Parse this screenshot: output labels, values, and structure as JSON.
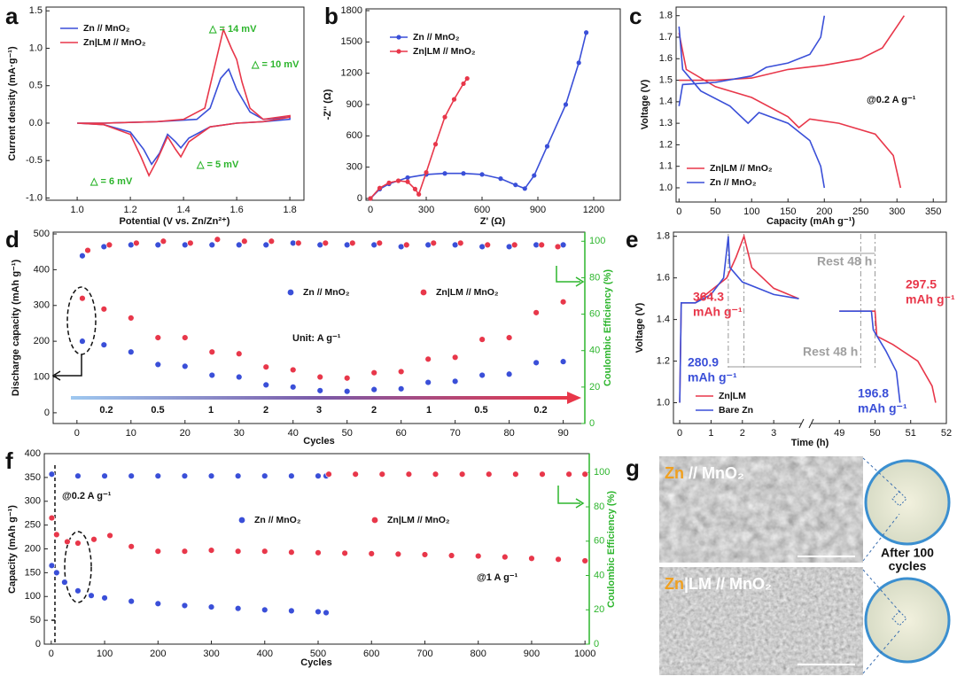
{
  "chart_data": [
    {
      "panel_label": "a",
      "type": "line",
      "xlabel": "Potential (V vs. Zn/Zn²⁺)",
      "ylabel": "Current density (mA·g⁻¹)",
      "xlim": [
        0.883,
        1.853
      ],
      "ylim": [
        -1.03,
        1.55
      ],
      "xticks": [
        {
          "value": 1,
          "label": "1.0"
        },
        1.2,
        1.4,
        1.6,
        1.8
      ],
      "yticks": [
        {
          "value": -1,
          "label": "-1.0"
        },
        -0.5,
        {
          "value": 0,
          "label": "0.0"
        },
        0.5,
        {
          "value": 1,
          "label": "1.0"
        },
        1.5
      ],
      "series": [
        {
          "name": "Zn // MnO₂",
          "color": "#3a4fd8",
          "x": [
            1.0,
            1.1,
            1.2,
            1.25,
            1.28,
            1.31,
            1.34,
            1.37,
            1.39,
            1.42,
            1.5,
            1.6,
            1.7,
            1.8,
            1.8,
            1.7,
            1.65,
            1.6,
            1.57,
            1.54,
            1.5,
            1.45,
            1.3,
            1.1,
            1.0
          ],
          "values": [
            0,
            -0.02,
            -0.12,
            -0.35,
            -0.55,
            -0.4,
            -0.15,
            -0.25,
            -0.33,
            -0.2,
            -0.05,
            0,
            0.02,
            0.05,
            0.08,
            0.05,
            0.15,
            0.45,
            0.72,
            0.6,
            0.2,
            0.05,
            0.02,
            0,
            0
          ]
        },
        {
          "name": "Zn|LM // MnO₂",
          "color": "#e8374a",
          "x": [
            1.0,
            1.1,
            1.2,
            1.24,
            1.27,
            1.3,
            1.34,
            1.37,
            1.39,
            1.42,
            1.5,
            1.6,
            1.7,
            1.8,
            1.8,
            1.7,
            1.65,
            1.62,
            1.6,
            1.58,
            1.55,
            1.52,
            1.48,
            1.4,
            1.3,
            1.1,
            1.0
          ],
          "values": [
            0,
            -0.02,
            -0.15,
            -0.45,
            -0.7,
            -0.5,
            -0.18,
            -0.35,
            -0.45,
            -0.25,
            -0.05,
            0,
            0.02,
            0.08,
            0.1,
            0.05,
            0.2,
            0.55,
            0.85,
            1.0,
            1.25,
            0.8,
            0.2,
            0.05,
            0.02,
            0,
            0
          ]
        }
      ],
      "annotations": [
        {
          "text": "△ = 14 mV",
          "color": "#2db52d"
        },
        {
          "text": "△ = 10 mV",
          "color": "#2db52d"
        },
        {
          "text": "△ = 5 mV",
          "color": "#2db52d"
        },
        {
          "text": "△ = 6 mV",
          "color": "#2db52d"
        }
      ]
    },
    {
      "panel_label": "b",
      "type": "line",
      "markers": true,
      "xlabel": "Z' (Ω)",
      "ylabel": "-Z'' (Ω)",
      "xlim": [
        -24,
        1343
      ],
      "ylim": [
        -17,
        1817
      ],
      "xticks": [
        0,
        300,
        600,
        900,
        1200
      ],
      "yticks": [
        0,
        300,
        600,
        900,
        1200,
        1500,
        1800
      ],
      "series": [
        {
          "name": "Zn // MnO₂",
          "color": "#3a4fd8",
          "x": [
            0,
            50,
            100,
            200,
            300,
            400,
            500,
            600,
            700,
            780,
            830,
            880,
            950,
            1050,
            1120,
            1160
          ],
          "values": [
            0,
            90,
            140,
            200,
            230,
            240,
            240,
            230,
            190,
            130,
            95,
            220,
            500,
            900,
            1300,
            1590
          ]
        },
        {
          "name": "Zn|LM // MnO₂",
          "color": "#e8374a",
          "x": [
            0,
            50,
            100,
            150,
            200,
            240,
            260,
            300,
            350,
            400,
            450,
            500,
            520
          ],
          "values": [
            0,
            100,
            150,
            170,
            160,
            90,
            40,
            250,
            520,
            780,
            950,
            1100,
            1150
          ]
        }
      ],
      "annotations": []
    },
    {
      "panel_label": "c",
      "type": "line",
      "xlabel": "Capacity (mAh g⁻¹)",
      "ylabel": "Voltage (V)",
      "xlim": [
        -4,
        368
      ],
      "ylim": [
        0.934,
        1.84
      ],
      "xticks": [
        0,
        50,
        100,
        150,
        200,
        250,
        300,
        350
      ],
      "yticks": [
        {
          "value": 1,
          "label": "1.0"
        },
        1.1,
        1.2,
        1.3,
        1.4,
        1.5,
        1.6,
        1.7,
        1.8
      ],
      "series": [
        {
          "name": "Zn|LM // MnO₂",
          "color": "#e8374a",
          "x": [
            0,
            50,
            100,
            150,
            200,
            250,
            280,
            300,
            310,
            null,
            0,
            10,
            50,
            100,
            150,
            165,
            180,
            220,
            270,
            295,
            305
          ],
          "values": [
            1.5,
            1.5,
            1.51,
            1.55,
            1.57,
            1.6,
            1.65,
            1.75,
            1.8,
            null,
            1.72,
            1.55,
            1.47,
            1.42,
            1.33,
            1.28,
            1.32,
            1.3,
            1.25,
            1.15,
            1.0
          ]
        },
        {
          "name": "Zn // MnO₂",
          "color": "#3a4fd8",
          "x": [
            0,
            5,
            50,
            100,
            120,
            150,
            180,
            195,
            200,
            null,
            0,
            5,
            30,
            70,
            95,
            110,
            150,
            180,
            195,
            200
          ],
          "values": [
            1.38,
            1.48,
            1.49,
            1.52,
            1.56,
            1.58,
            1.62,
            1.7,
            1.8,
            null,
            1.75,
            1.55,
            1.45,
            1.38,
            1.3,
            1.35,
            1.3,
            1.22,
            1.1,
            1.0
          ]
        }
      ],
      "annotations": [
        {
          "text": "@0.2 A g⁻¹",
          "color": "#111111"
        }
      ]
    },
    {
      "panel_label": "d",
      "type": "scatter",
      "xlabel": "Cycles",
      "ylabel": "Discharge capacity (mAh g⁻¹)",
      "y2label": "Coulombic Efficiency (%)",
      "xlim": [
        -4.4,
        94
      ],
      "ylim": [
        -30,
        505
      ],
      "y2lim": [
        0,
        105
      ],
      "xticks": [
        0,
        10,
        20,
        30,
        40,
        50,
        60,
        70,
        80,
        90
      ],
      "yticks": [
        0,
        100,
        200,
        300,
        400,
        500
      ],
      "y2ticks": [
        0,
        20,
        40,
        60,
        80,
        100
      ],
      "series": [
        {
          "name": "Zn // MnO₂",
          "color": "#3a4fd8",
          "x": [
            1,
            5,
            10,
            15,
            20,
            25,
            30,
            35,
            40,
            45,
            50,
            55,
            60,
            65,
            70,
            75,
            80,
            85,
            90
          ],
          "values": [
            200,
            190,
            170,
            135,
            130,
            105,
            100,
            78,
            72,
            62,
            60,
            65,
            67,
            85,
            88,
            105,
            108,
            140,
            143
          ]
        },
        {
          "name": "Zn|LM // MnO₂",
          "color": "#e8374a",
          "x": [
            1,
            5,
            10,
            15,
            20,
            25,
            30,
            35,
            40,
            45,
            50,
            55,
            60,
            65,
            70,
            75,
            80,
            85,
            90
          ],
          "values": [
            320,
            290,
            265,
            210,
            210,
            170,
            165,
            128,
            120,
            100,
            97,
            112,
            115,
            150,
            155,
            205,
            210,
            280,
            310
          ]
        },
        {
          "color": "#3a4fd8",
          "axis": "y2",
          "x": [
            1,
            5,
            10,
            15,
            20,
            25,
            30,
            35,
            40,
            45,
            50,
            55,
            60,
            65,
            70,
            75,
            80,
            85,
            90
          ],
          "values": [
            92,
            97,
            98,
            98,
            98,
            98,
            98,
            98,
            99,
            98,
            98,
            98,
            97,
            98,
            98,
            97,
            97,
            98,
            98
          ]
        },
        {
          "color": "#e8374a",
          "axis": "y2",
          "x": [
            2,
            6,
            11,
            16,
            21,
            26,
            31,
            36,
            41,
            46,
            51,
            56,
            61,
            66,
            71,
            76,
            81,
            86,
            89
          ],
          "values": [
            95,
            98,
            99,
            100,
            99,
            101,
            100,
            100,
            99,
            99,
            99,
            99,
            98,
            99,
            99,
            98,
            98,
            98,
            97
          ]
        }
      ],
      "annotations": [
        {
          "text": "Unit: A g⁻¹",
          "color": "#111111"
        }
      ],
      "rate_labels": [
        "0.2",
        "0.5",
        "1",
        "2",
        "3",
        "2",
        "1",
        "0.5",
        "0.2"
      ]
    },
    {
      "panel_label": "e",
      "type": "line",
      "xlabel": "Time (h)",
      "ylabel": "Voltage (V)",
      "xlim": [
        -0.2,
        52
      ],
      "x_break": [
        3.9,
        48.2
      ],
      "ylim": [
        0.9,
        1.82
      ],
      "xticks": [
        0,
        1,
        2,
        3,
        49,
        50,
        51,
        52
      ],
      "yticks": [
        {
          "value": 1,
          "label": "1.0"
        },
        1.2,
        1.4,
        1.6,
        1.8
      ],
      "series": [
        {
          "name": "Zn|LM",
          "color": "#e8374a",
          "x": [
            0,
            0.05,
            0.5,
            1.5,
            1.8,
            2.05,
            2.3,
            3,
            3.8,
            null,
            49,
            50,
            50.05,
            50.5,
            51.2,
            51.6,
            51.7
          ],
          "values": [
            1.0,
            1.48,
            1.48,
            1.6,
            1.7,
            1.8,
            1.65,
            1.55,
            1.5,
            null,
            1.44,
            1.44,
            1.32,
            1.28,
            1.2,
            1.08,
            1.0
          ]
        },
        {
          "name": "Bare Zn",
          "color": "#3a4fd8",
          "x": [
            0,
            0.05,
            0.5,
            1.0,
            1.4,
            1.55,
            1.6,
            2,
            3,
            3.8,
            null,
            49,
            49.9,
            49.95,
            50.3,
            50.6,
            50.7
          ],
          "values": [
            1.0,
            1.48,
            1.48,
            1.52,
            1.6,
            1.8,
            1.65,
            1.58,
            1.52,
            1.5,
            null,
            1.44,
            1.44,
            1.35,
            1.25,
            1.15,
            1.0
          ]
        }
      ],
      "annotations": [
        {
          "lines": [
            "364.3",
            "mAh g⁻¹"
          ],
          "color": "#e8374a"
        },
        {
          "lines": [
            "280.9",
            "mAh g⁻¹"
          ],
          "color": "#3a4fd8"
        },
        {
          "lines": [
            "Rest 48 h"
          ],
          "color": "#a0a0a0"
        },
        {
          "lines": [
            "Rest 48 h"
          ],
          "color": "#a0a0a0"
        },
        {
          "lines": [
            "297.5",
            "mAh g⁻¹"
          ],
          "color": "#e8374a"
        },
        {
          "lines": [
            "196.8",
            "mAh g⁻¹"
          ],
          "color": "#3a4fd8"
        }
      ]
    },
    {
      "panel_label": "f",
      "type": "scatter",
      "xlabel": "Cycles",
      "ylabel": "Capacity (mAh g⁻¹)",
      "y2label": "Coulombic Efficiency (%)",
      "xlim": [
        -13,
        1008
      ],
      "ylim": [
        0,
        400
      ],
      "y2lim": [
        0,
        111
      ],
      "xticks": [
        0,
        100,
        200,
        300,
        400,
        500,
        600,
        700,
        800,
        900,
        1000
      ],
      "yticks": [
        0,
        50,
        100,
        150,
        200,
        250,
        300,
        350,
        400
      ],
      "y2ticks": [
        0,
        20,
        40,
        60,
        80,
        100
      ],
      "series": [
        {
          "name": "Zn // MnO₂",
          "color": "#3a4fd8",
          "x": [
            1,
            10,
            25,
            50,
            75,
            100,
            150,
            200,
            250,
            300,
            350,
            400,
            450,
            500,
            515
          ],
          "values": [
            165,
            150,
            130,
            112,
            102,
            97,
            90,
            85,
            81,
            78,
            75,
            72,
            70,
            68,
            66
          ]
        },
        {
          "name": "Zn|LM // MnO₂",
          "color": "#e8374a",
          "x": [
            1,
            10,
            30,
            50,
            80,
            110,
            150,
            200,
            250,
            300,
            350,
            400,
            450,
            500,
            550,
            600,
            650,
            700,
            750,
            800,
            850,
            900,
            950,
            1000
          ],
          "values": [
            265,
            230,
            215,
            212,
            220,
            228,
            205,
            195,
            195,
            197,
            195,
            195,
            193,
            192,
            191,
            190,
            189,
            188,
            186,
            185,
            183,
            180,
            178,
            175
          ]
        },
        {
          "color": "#3a4fd8",
          "axis": "y2",
          "x": [
            1,
            50,
            100,
            150,
            200,
            250,
            300,
            350,
            400,
            450,
            500,
            515
          ],
          "values": [
            99,
            98,
            98,
            98,
            98,
            98,
            98,
            98,
            98,
            98,
            98,
            98
          ]
        },
        {
          "color": "#e8374a",
          "axis": "y2",
          "x": [
            520,
            570,
            620,
            670,
            720,
            770,
            820,
            870,
            920,
            970,
            1000
          ],
          "values": [
            99,
            99,
            99,
            99,
            99,
            99,
            99,
            99,
            99,
            99,
            99
          ]
        }
      ],
      "annotations": [
        {
          "text": "@0.2 A g⁻¹",
          "color": "#111111"
        },
        {
          "text": "@1 A g⁻¹",
          "color": "#111111"
        }
      ]
    }
  ],
  "panel_g": {
    "label": "g",
    "images": [
      {
        "prefix": "Zn",
        "rest": " // MnO₂"
      },
      {
        "prefix": "Zn",
        "rest": "|LM // MnO₂"
      }
    ],
    "caption": [
      "After 100",
      "cycles"
    ]
  }
}
